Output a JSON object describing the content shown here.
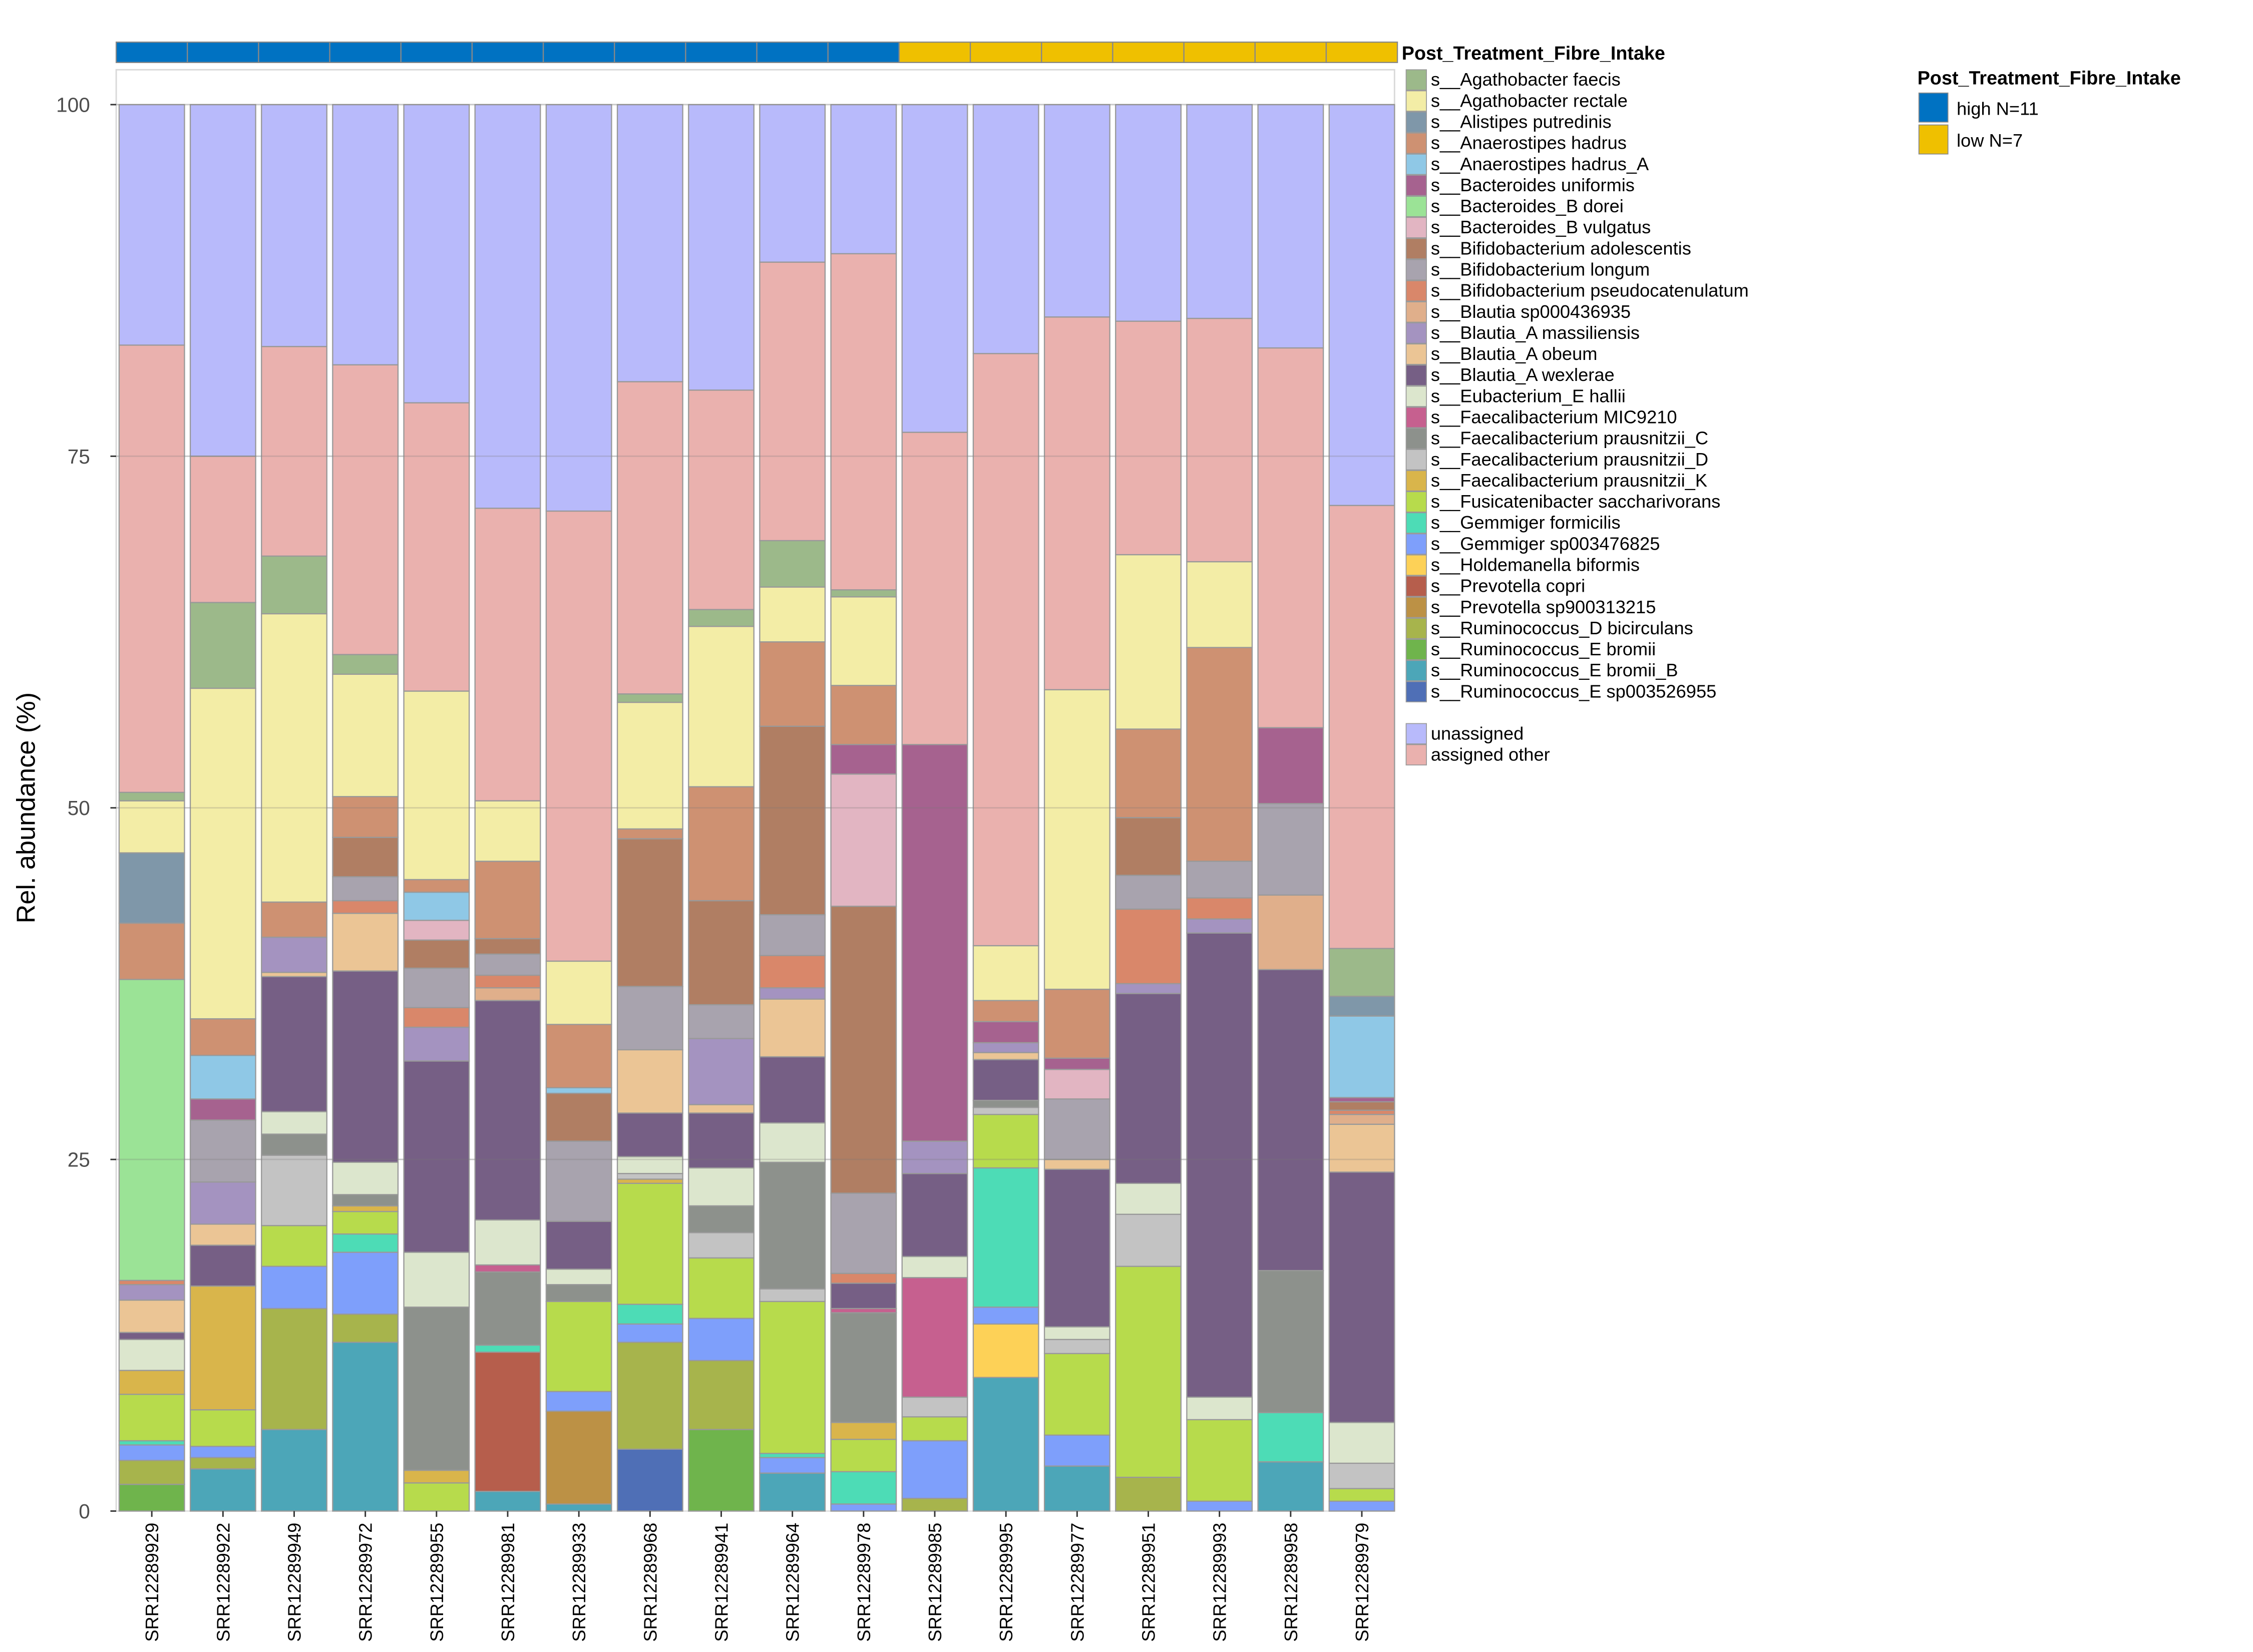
{
  "chart_data": {
    "type": "bar",
    "stacked": true,
    "ylabel": "Rel. abundance (%)",
    "xlabel": "",
    "ylim": [
      0,
      100
    ],
    "yticks": [
      0,
      25,
      50,
      75,
      100
    ],
    "grid": true,
    "categories": [
      "SRR12289929",
      "SRR12289922",
      "SRR12289949",
      "SRR12289972",
      "SRR12289955",
      "SRR12289981",
      "SRR12289933",
      "SRR12289968",
      "SRR12289941",
      "SRR12289964",
      "SRR12289978",
      "SRR12289985",
      "SRR12289995",
      "SRR12289977",
      "SRR12289951",
      "SRR12289993",
      "SRR12289958",
      "SRR12289979"
    ],
    "groups": [
      "high",
      "high",
      "high",
      "high",
      "high",
      "high",
      "high",
      "high",
      "high",
      "high",
      "high",
      "low",
      "low",
      "low",
      "low",
      "low",
      "low",
      "low"
    ],
    "group_legend": {
      "title": "Post_Treatment_Fibre_Intake",
      "entries": [
        {
          "key": "high",
          "label": "high N=11",
          "color": "#0072C2"
        },
        {
          "key": "low",
          "label": "low N=7",
          "color": "#EFC000"
        }
      ]
    },
    "species_legend_title": "Post_Treatment_Fibre_Intake",
    "legend_placement": "right",
    "series": [
      {
        "name": "s__Agathobacter faecis",
        "color": "#9CB98A",
        "values": [
          0.6,
          6.1,
          4.1,
          1.4,
          0,
          0,
          0,
          0.6,
          1.2,
          3.3,
          0.5,
          0,
          0,
          0,
          0,
          0,
          0,
          3.4
        ]
      },
      {
        "name": "s__Agathobacter rectale",
        "color": "#F3EDA6",
        "values": [
          3.7,
          23.5,
          20.5,
          8.7,
          13.4,
          4.3,
          4.5,
          9.0,
          11.4,
          3.9,
          6.3,
          0,
          3.9,
          21.3,
          12.4,
          6.1,
          0,
          0
        ]
      },
      {
        "name": "s__Alistipes putredinis",
        "color": "#7F97A9",
        "values": [
          5.0,
          0,
          0,
          0,
          0,
          0,
          0,
          0,
          0,
          0,
          0,
          0,
          0,
          0,
          0,
          0,
          0,
          1.4
        ]
      },
      {
        "name": "s__Anaerostipes hadrus",
        "color": "#CE9172",
        "values": [
          4.0,
          2.6,
          2.5,
          2.9,
          0.9,
          5.5,
          4.5,
          0.7,
          8.1,
          6.0,
          4.2,
          0,
          1.5,
          4.9,
          6.3,
          15.2,
          0,
          0
        ]
      },
      {
        "name": "s__Anaerostipes hadrus_A",
        "color": "#8FC8E6",
        "values": [
          0,
          3.1,
          0,
          0,
          2.0,
          0,
          0.4,
          0,
          0,
          0,
          0,
          0,
          0,
          0,
          0,
          0,
          0,
          5.8
        ]
      },
      {
        "name": "s__Bacteroides uniformis",
        "color": "#A6628F",
        "values": [
          0,
          1.5,
          0,
          0,
          0,
          0,
          0,
          0,
          0,
          0,
          2.1,
          28.2,
          1.5,
          0.8,
          0,
          0,
          5.4,
          0.3
        ]
      },
      {
        "name": "s__Bacteroides_B dorei",
        "color": "#9BE396",
        "values": [
          21.4,
          0,
          0,
          0,
          0,
          0,
          0,
          0,
          0,
          0,
          0,
          0,
          0,
          0,
          0,
          0,
          0,
          0
        ]
      },
      {
        "name": "s__Bacteroides_B vulgatus",
        "color": "#E2B5C2",
        "values": [
          0,
          0,
          0,
          0,
          1.4,
          0,
          0,
          0,
          0,
          0,
          9.4,
          0,
          0,
          2.1,
          0,
          0,
          0,
          0
        ]
      },
      {
        "name": "s__Bifidobacterium adolescentis",
        "color": "#B07E63",
        "values": [
          0,
          0,
          0,
          2.8,
          2.0,
          1.1,
          3.4,
          10.5,
          7.4,
          13.4,
          20.4,
          0,
          0,
          0,
          4.1,
          0,
          0,
          0.6
        ]
      },
      {
        "name": "s__Bifidobacterium longum",
        "color": "#A8A3AE",
        "values": [
          0,
          4.4,
          0,
          1.7,
          2.8,
          1.5,
          5.7,
          4.5,
          2.4,
          2.9,
          5.7,
          0,
          0,
          4.3,
          2.4,
          2.6,
          6.5,
          0
        ]
      },
      {
        "name": "s__Bifidobacterium pseudocatenulatum",
        "color": "#D9876A",
        "values": [
          0.3,
          0,
          0,
          0.9,
          1.4,
          0.9,
          0,
          0,
          0,
          2.3,
          0.7,
          0,
          0,
          0,
          5.3,
          1.5,
          0,
          0.3
        ]
      },
      {
        "name": "s__Blautia sp000436935",
        "color": "#E0AF8B",
        "values": [
          0,
          0,
          0,
          0,
          0,
          0.9,
          0,
          0,
          0,
          0,
          0,
          0,
          0,
          0,
          0,
          0,
          5.3,
          0.7
        ]
      },
      {
        "name": "s__Blautia_A massiliensis",
        "color": "#A493C0",
        "values": [
          1.1,
          3.0,
          2.5,
          0,
          2.4,
          0,
          0,
          0,
          4.7,
          0.8,
          0,
          2.3,
          0.7,
          0,
          0.7,
          1.0,
          0,
          0
        ]
      },
      {
        "name": "s__Blautia_A obeum",
        "color": "#EBC595",
        "values": [
          2.3,
          1.5,
          0.3,
          4.1,
          0,
          0,
          0,
          4.5,
          0.6,
          4.1,
          0,
          0,
          0.5,
          0.7,
          0,
          0,
          0,
          3.4
        ]
      },
      {
        "name": "s__Blautia_A wexlerae",
        "color": "#765F85",
        "values": [
          0.5,
          2.9,
          9.6,
          13.6,
          13.6,
          15.6,
          3.4,
          3.1,
          3.9,
          4.7,
          1.8,
          5.9,
          2.9,
          11.2,
          13.5,
          33.0,
          21.4,
          17.8
        ]
      },
      {
        "name": "s__Eubacterium_E hallii",
        "color": "#DCE6CD",
        "values": [
          2.2,
          0,
          1.6,
          2.3,
          3.9,
          3.2,
          1.1,
          1.2,
          2.7,
          2.8,
          0,
          1.5,
          0,
          0.9,
          2.2,
          1.6,
          0,
          2.9
        ]
      },
      {
        "name": "s__Faecalibacterium MIC9210",
        "color": "#C6608F",
        "values": [
          0,
          0,
          0,
          0,
          0,
          0.5,
          0,
          0,
          0,
          0,
          0.3,
          8.5,
          0,
          0,
          0,
          0,
          0,
          0
        ]
      },
      {
        "name": "s__Faecalibacterium prausnitzii_C",
        "color": "#8D918C",
        "values": [
          0,
          0,
          1.5,
          0.8,
          11.6,
          5.2,
          1.2,
          0,
          1.9,
          9.0,
          7.8,
          0,
          0.5,
          0,
          0,
          0,
          10.1,
          0
        ]
      },
      {
        "name": "s__Faecalibacterium prausnitzii_D",
        "color": "#C3C3C3",
        "values": [
          0,
          0,
          5.0,
          0,
          0,
          0,
          0,
          0.4,
          1.8,
          0.9,
          0,
          1.4,
          0.5,
          1.0,
          3.7,
          0,
          0,
          1.8
        ]
      },
      {
        "name": "s__Faecalibacterium prausnitzii_K",
        "color": "#D9B54B",
        "values": [
          1.7,
          8.8,
          0,
          0.4,
          0.9,
          0,
          0,
          0.3,
          0,
          0,
          1.2,
          0,
          0,
          0,
          0,
          0,
          0,
          0
        ]
      },
      {
        "name": "s__Fusicatenibacter saccharivorans",
        "color": "#B7DB4C",
        "values": [
          3.3,
          2.6,
          2.9,
          1.6,
          2.0,
          0,
          6.4,
          8.6,
          4.3,
          10.8,
          2.3,
          1.7,
          3.8,
          5.8,
          15.0,
          5.8,
          0,
          0.9
        ]
      },
      {
        "name": "s__Gemmiger formicilis",
        "color": "#4DDCB6",
        "values": [
          0.3,
          0,
          0,
          1.3,
          0,
          0.5,
          0,
          1.4,
          0,
          0.3,
          2.3,
          0,
          9.9,
          0,
          0,
          0,
          3.5,
          0
        ]
      },
      {
        "name": "s__Gemmiger sp003476825",
        "color": "#7E9FFB",
        "values": [
          1.1,
          0.8,
          3.0,
          4.4,
          0,
          0,
          1.4,
          1.3,
          3.0,
          1.1,
          0.5,
          4.1,
          1.2,
          2.2,
          0,
          0.7,
          0,
          0.7
        ]
      },
      {
        "name": "s__Holdemanella biformis",
        "color": "#FDD157",
        "values": [
          0,
          0,
          0,
          0,
          0,
          0,
          0,
          0,
          0,
          0,
          0,
          0,
          3.8,
          0,
          0,
          0,
          0,
          0
        ]
      },
      {
        "name": "s__Prevotella copri",
        "color": "#B65E4C",
        "values": [
          0,
          0,
          0,
          0,
          0,
          9.9,
          0,
          0,
          0,
          0,
          0,
          0,
          0,
          0,
          0,
          0,
          0,
          0
        ]
      },
      {
        "name": "s__Prevotella sp900313215",
        "color": "#BC9145",
        "values": [
          0,
          0,
          0,
          0,
          0,
          0,
          6.6,
          0,
          0,
          0,
          0,
          0,
          0,
          0,
          0,
          0,
          0,
          0
        ]
      },
      {
        "name": "s__Ruminococcus_D bicirculans",
        "color": "#A7B44C",
        "values": [
          1.7,
          0.8,
          8.6,
          2.0,
          0,
          0,
          0,
          7.6,
          4.9,
          0,
          0,
          0.9,
          0,
          0,
          2.4,
          0,
          0,
          0
        ]
      },
      {
        "name": "s__Ruminococcus_E bromii",
        "color": "#6FB44C",
        "values": [
          1.9,
          0,
          0,
          0,
          0,
          0,
          0,
          0,
          5.8,
          0,
          0,
          0,
          0,
          0,
          0,
          0,
          0,
          0
        ]
      },
      {
        "name": "s__Ruminococcus_E bromii_B",
        "color": "#4CA6B8",
        "values": [
          0,
          3.0,
          5.8,
          12.0,
          0,
          1.4,
          0.5,
          0,
          0,
          2.7,
          0,
          0,
          9.5,
          3.2,
          0,
          0,
          3.5,
          0
        ]
      },
      {
        "name": "s__Ruminococcus_E sp003526955",
        "color": "#4F6FB6",
        "values": [
          0,
          0,
          0,
          0,
          0,
          0,
          0,
          4.4,
          0,
          0,
          0,
          0,
          0,
          0,
          0,
          0,
          0,
          0
        ]
      }
    ],
    "extra_series": [
      {
        "name": "unassigned",
        "color": "#B8BAFB",
        "values": [
          17.1,
          25.0,
          17.2,
          18.5,
          21.2,
          28.7,
          28.9,
          19.7,
          20.3,
          11.2,
          10.6,
          23.3,
          17.7,
          15.1,
          15.4,
          15.2,
          17.3,
          28.5
        ]
      },
      {
        "name": "assigned other",
        "color": "#EAB1AE",
        "values": [
          31.8,
          10.4,
          14.9,
          20.6,
          20.5,
          20.8,
          32.0,
          22.2,
          15.6,
          19.8,
          23.9,
          22.2,
          42.1,
          26.5,
          16.6,
          17.3,
          27.0,
          31.5
        ]
      }
    ]
  }
}
